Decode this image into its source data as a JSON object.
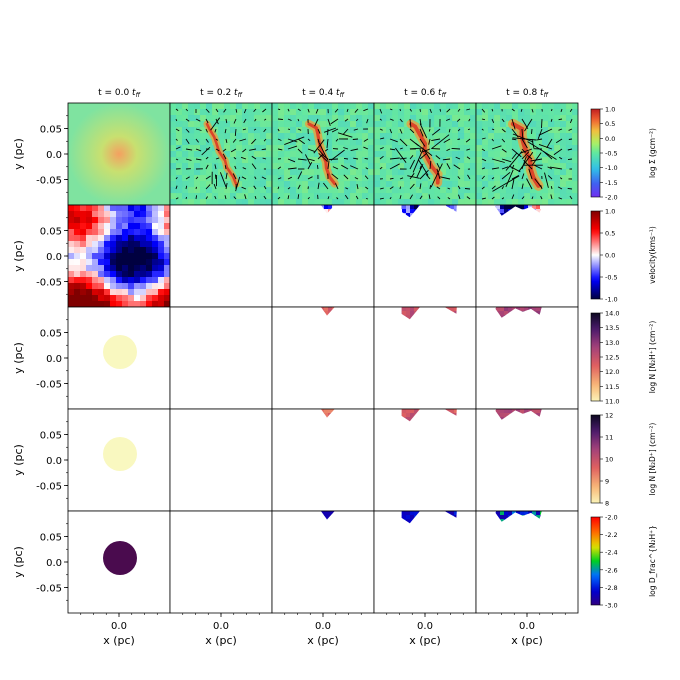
{
  "chart_data": {
    "type": "heatmap",
    "title": "",
    "xlabel": "x (pc)",
    "ylabel": "y (pc)",
    "columns": [
      "t = 0.0 t_ff",
      "t = 0.2 t_ff",
      "t = 0.4 t_ff",
      "t = 0.6 t_ff",
      "t = 0.8 t_ff"
    ],
    "time_values": [
      0.0,
      0.2,
      0.4,
      0.6,
      0.8
    ],
    "time_unit": "t_ff",
    "x_ticks": [
      "0.0"
    ],
    "x_tick_values": [
      0.0
    ],
    "y_ticks": [
      "0.05",
      "0.0",
      "-0.05"
    ],
    "y_tick_values": [
      0.05,
      0.0,
      -0.05
    ],
    "axis_range": [
      -0.1,
      0.1
    ],
    "rows": [
      {
        "quantity": "log Σ (gcm⁻²)",
        "colormap": "turbo-like",
        "range": [
          -2.0,
          1.0
        ],
        "colorbar_ticks": [
          "1.0",
          "0.5",
          "0.0",
          "-0.5",
          "-1.0",
          "-1.5",
          "-2.0"
        ],
        "colorbar_tick_values": [
          1.0,
          0.5,
          0.0,
          -0.5,
          -1.0,
          -1.5,
          -2.0
        ],
        "overlay": "velocity vectors"
      },
      {
        "quantity": "velocity(kms⁻¹)",
        "colormap": "seismic",
        "range": [
          -1.0,
          1.0
        ],
        "colorbar_ticks": [
          "1.0",
          "0.5",
          "0.0",
          "-0.5",
          "-1.0"
        ],
        "colorbar_tick_values": [
          1.0,
          0.5,
          0.0,
          -0.5,
          -1.0
        ]
      },
      {
        "quantity": "log N [N₂H⁺] (cm⁻²)",
        "colormap": "magma_r",
        "range": [
          11.0,
          14.0
        ],
        "colorbar_ticks": [
          "14.0",
          "13.5",
          "13.0",
          "12.5",
          "12.0",
          "11.5",
          "11.0"
        ],
        "colorbar_tick_values": [
          14.0,
          13.5,
          13.0,
          12.5,
          12.0,
          11.5,
          11.0
        ]
      },
      {
        "quantity": "log N [N₂D⁺] (cm⁻²)",
        "colormap": "magma_r",
        "range": [
          8,
          12
        ],
        "colorbar_ticks": [
          "12",
          "11",
          "10",
          "9",
          "8"
        ],
        "colorbar_tick_values": [
          12,
          11,
          10,
          9,
          8
        ]
      },
      {
        "quantity": "log D_frac^{N₂H⁺}",
        "colormap": "jet-like",
        "range": [
          -3.0,
          -2.0
        ],
        "colorbar_ticks": [
          "-2.0",
          "-2.2",
          "-2.4",
          "-2.6",
          "-2.8",
          "-3.0"
        ],
        "colorbar_tick_values": [
          -2.0,
          -2.2,
          -2.4,
          -2.6,
          -2.8,
          -3.0
        ]
      }
    ]
  },
  "colors": {
    "sigma_bg": "#7fe3a0",
    "sigma_core": "#f4a060",
    "uniform_core": "#f9f8c0",
    "dfrac_core": "#4a0b4e",
    "dfrac_body": "#1a10b0"
  }
}
